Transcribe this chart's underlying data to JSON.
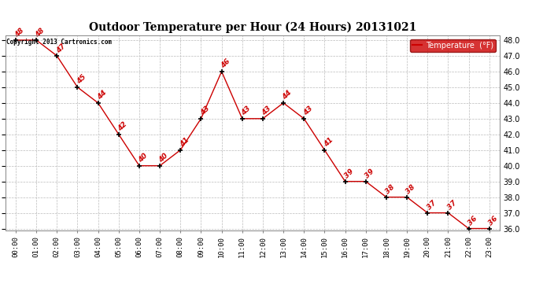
{
  "title": "Outdoor Temperature per Hour (24 Hours) 20131021",
  "hours": [
    "00:00",
    "01:00",
    "02:00",
    "03:00",
    "04:00",
    "05:00",
    "06:00",
    "07:00",
    "08:00",
    "09:00",
    "10:00",
    "11:00",
    "12:00",
    "13:00",
    "14:00",
    "15:00",
    "16:00",
    "17:00",
    "18:00",
    "19:00",
    "20:00",
    "21:00",
    "22:00",
    "23:00"
  ],
  "temps": [
    48,
    48,
    47,
    45,
    44,
    42,
    40,
    40,
    41,
    43,
    46,
    43,
    43,
    44,
    43,
    41,
    39,
    39,
    38,
    38,
    37,
    37,
    36,
    36
  ],
  "line_color": "#cc0000",
  "marker_color": "#000000",
  "label_color": "#cc0000",
  "legend_label": "Temperature  (°F)",
  "legend_bg": "#cc0000",
  "legend_text_color": "#ffffff",
  "ylim_min": 36.0,
  "ylim_max": 48.0,
  "yticks": [
    36.0,
    37.0,
    38.0,
    39.0,
    40.0,
    41.0,
    42.0,
    43.0,
    44.0,
    45.0,
    46.0,
    47.0,
    48.0
  ],
  "copyright_text": "Copyright 2013 Cartronics.com",
  "bg_color": "#ffffff",
  "grid_color": "#bbbbbb"
}
